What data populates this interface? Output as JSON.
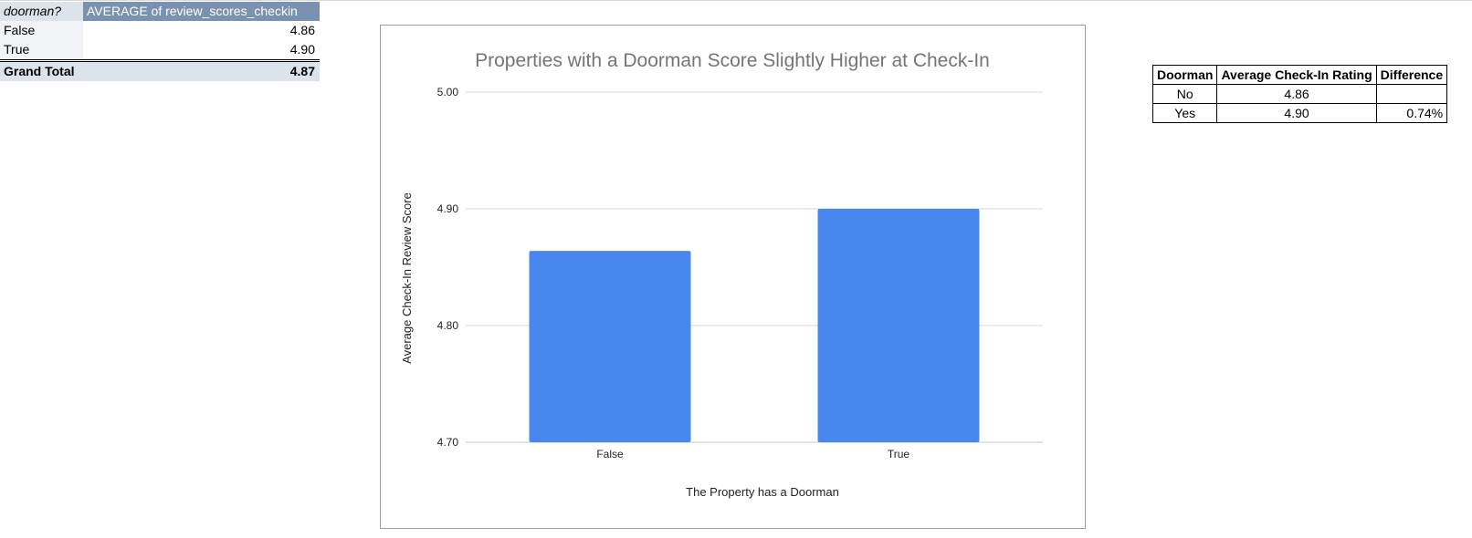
{
  "pivot": {
    "header": {
      "col1": "doorman?",
      "col2": "AVERAGE of review_scores_checkin"
    },
    "rows": [
      {
        "label": "False",
        "value": "4.86"
      },
      {
        "label": "True",
        "value": "4.90"
      }
    ],
    "total": {
      "label": "Grand Total",
      "value": "4.87"
    }
  },
  "summary_table": {
    "headers": [
      "Doorman",
      "Average Check-In Rating",
      "Difference"
    ],
    "rows": [
      [
        "No",
        "4.86",
        ""
      ],
      [
        "Yes",
        "4.90",
        "0.74%"
      ]
    ]
  },
  "chart_data": {
    "type": "bar",
    "title": "Properties with a Doorman Score Slightly Higher at Check-In",
    "xlabel": "The Property has a Doorman",
    "ylabel": "Average Check-In Review Score",
    "categories": [
      "False",
      "True"
    ],
    "values": [
      4.864,
      4.9
    ],
    "ylim": [
      4.7,
      5.0
    ],
    "yticks": [
      "4.70",
      "4.80",
      "4.90",
      "5.00"
    ],
    "ytick_values": [
      4.7,
      4.8,
      4.9,
      5.0
    ],
    "grid": true,
    "legend": "none",
    "bar_color": "#4787ee",
    "grid_color": "#d9d9d9"
  }
}
